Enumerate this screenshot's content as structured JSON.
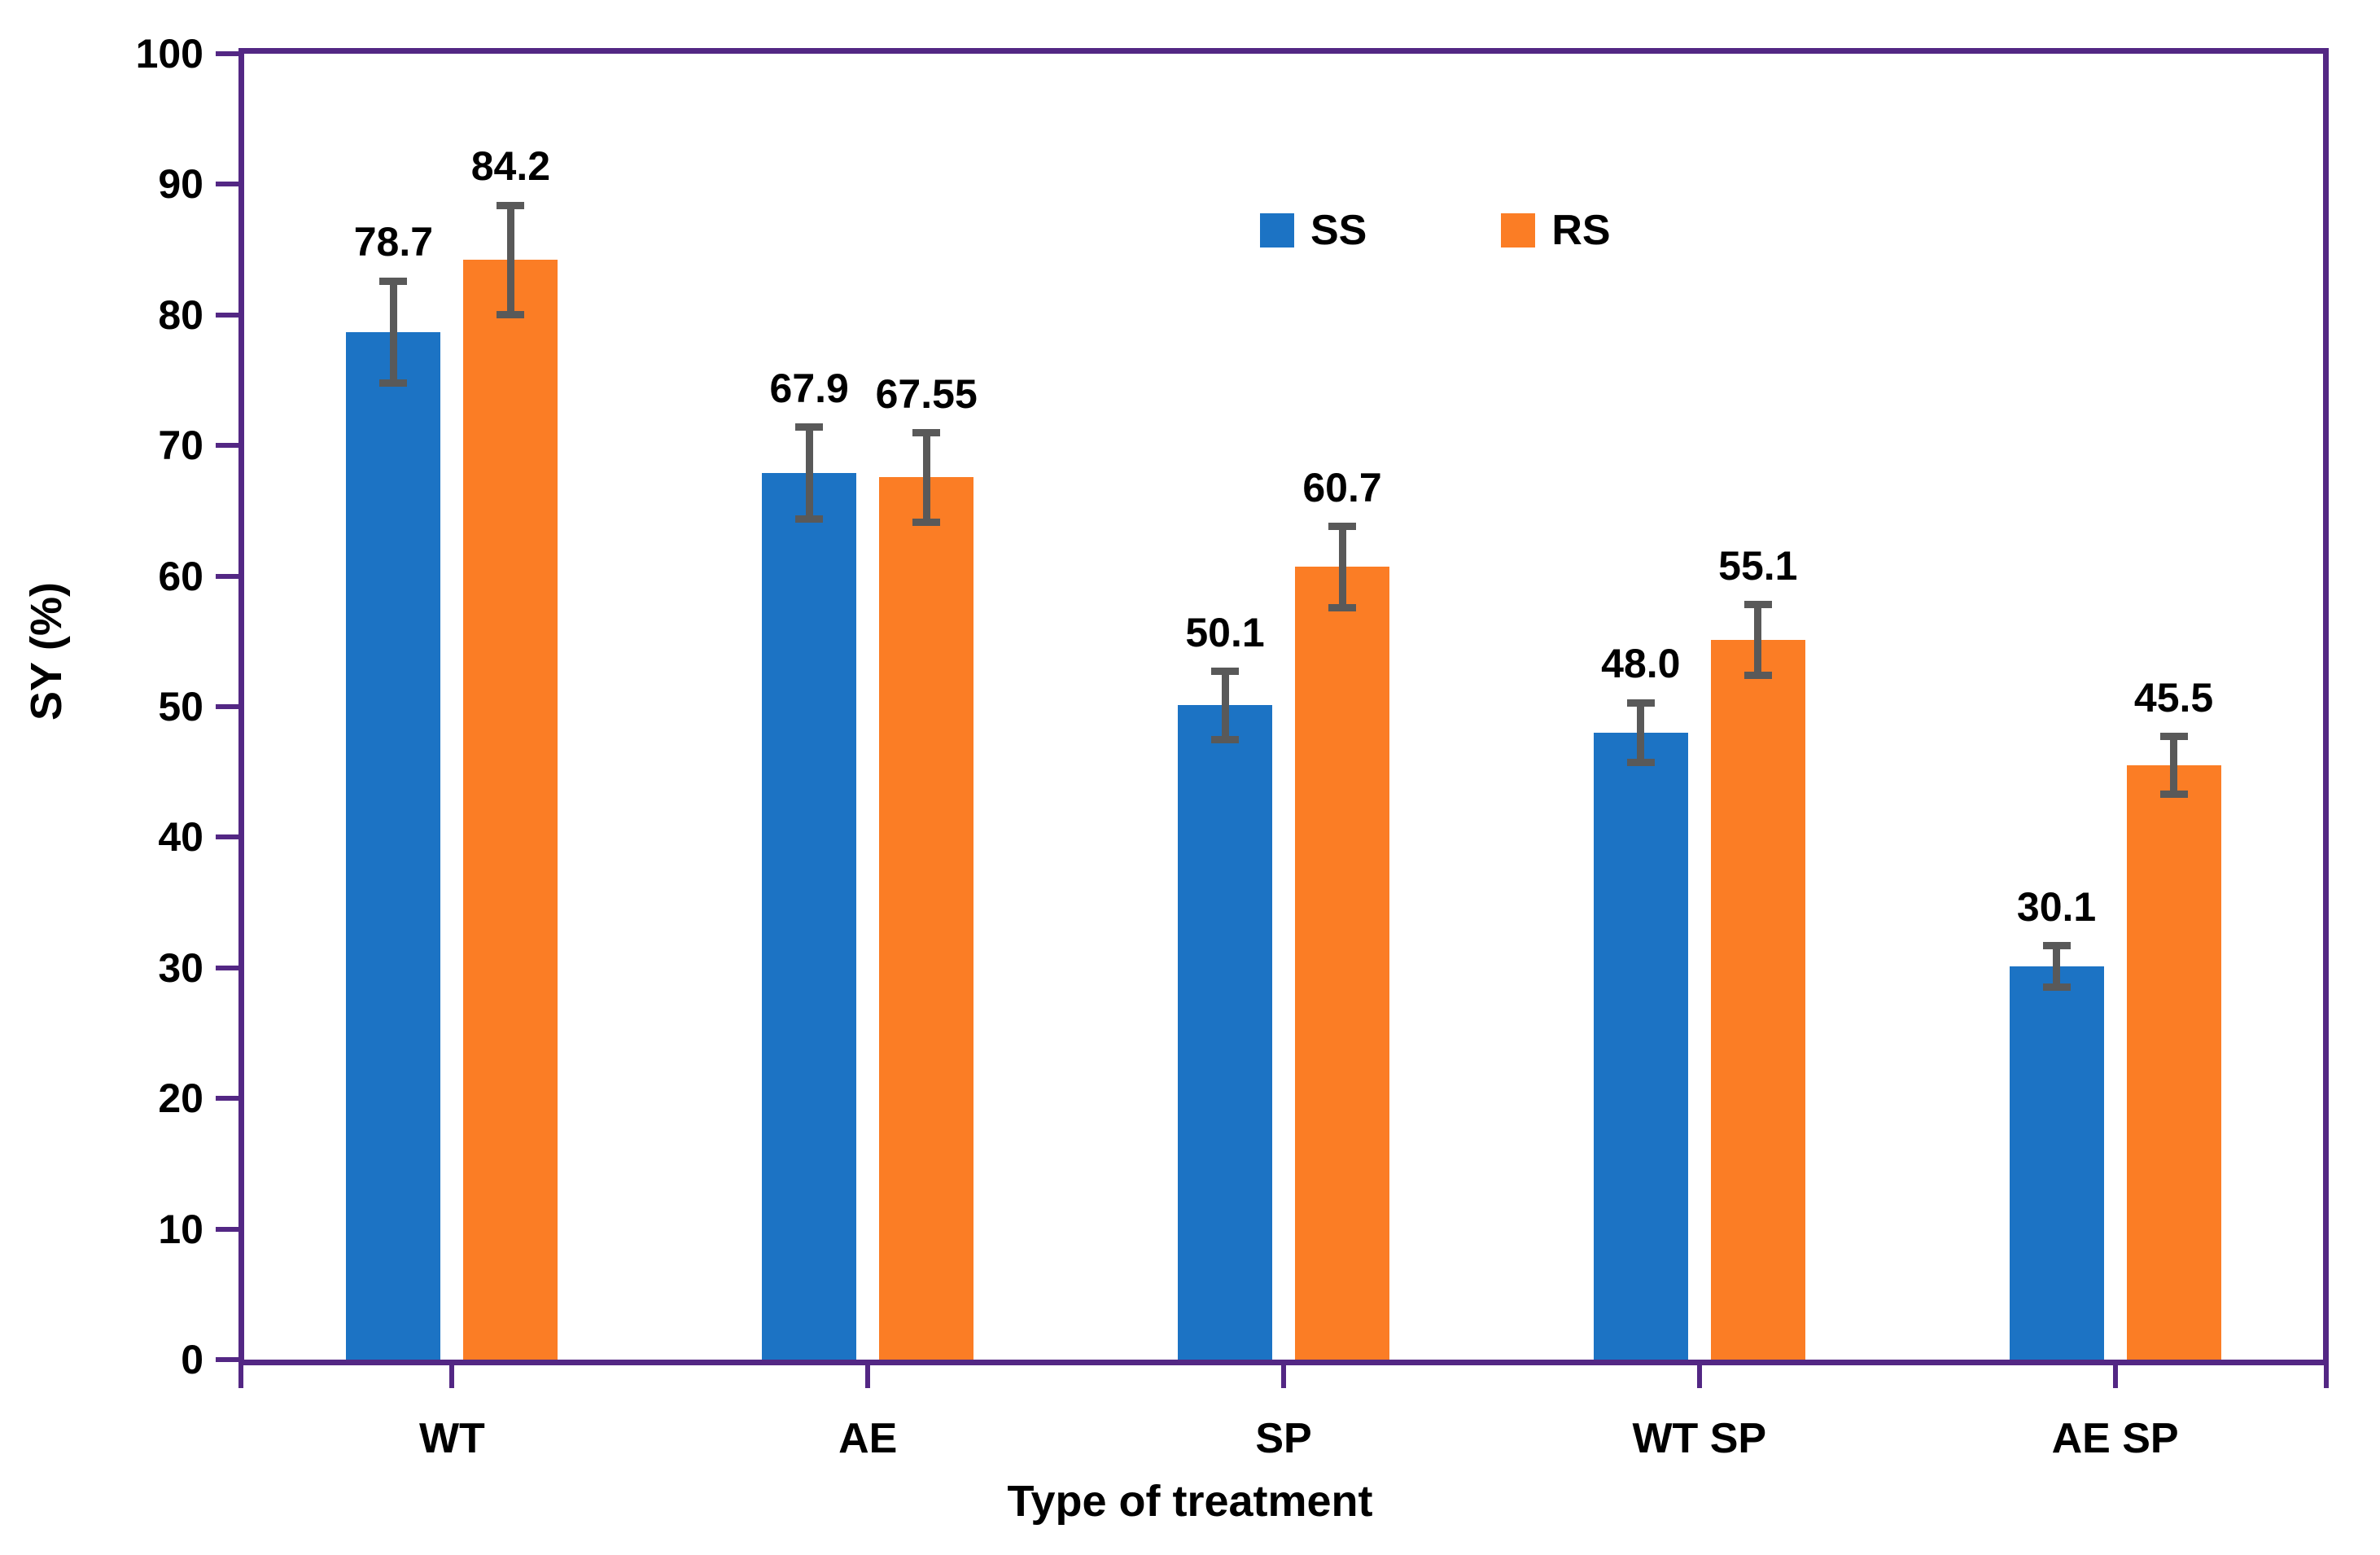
{
  "chart_data": {
    "type": "bar",
    "title": "",
    "xlabel": "Type of treatment",
    "ylabel": "SY (%)",
    "categories": [
      "WT",
      "AE",
      "SP",
      "WT SP",
      "AE SP"
    ],
    "series": [
      {
        "name": "SS",
        "color": "#1C73C4",
        "values": [
          78.7,
          67.9,
          50.1,
          48.0,
          30.1
        ],
        "value_labels": [
          "78.7",
          "67.9",
          "50.1",
          "48.0",
          "30.1"
        ],
        "errors": [
          3.9,
          3.5,
          2.6,
          2.3,
          1.6
        ]
      },
      {
        "name": "RS",
        "color": "#FB7D25",
        "values": [
          84.2,
          67.55,
          60.7,
          55.1,
          45.5
        ],
        "value_labels": [
          "84.2",
          "67.55",
          "60.7",
          "55.1",
          "45.5"
        ],
        "errors": [
          4.2,
          3.4,
          3.1,
          2.7,
          2.2
        ]
      }
    ],
    "ylim": [
      0,
      100
    ],
    "ytick_step": 10,
    "ytick_labels": [
      "0",
      "10",
      "20",
      "30",
      "40",
      "50",
      "60",
      "70",
      "80",
      "90",
      "100"
    ],
    "legend_position": "top-center",
    "grid": false,
    "colors": {
      "axis_border": "#532784",
      "error_bar": "#595959",
      "text": "#000000",
      "background": "#ffffff"
    }
  }
}
